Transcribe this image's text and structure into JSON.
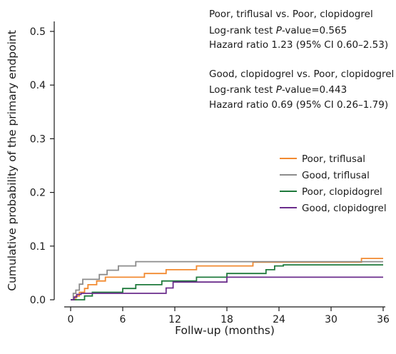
{
  "chart_data": {
    "type": "line",
    "subtype": "step",
    "xlabel": "Follw-up (months)",
    "ylabel": "Cumulative probability of the primary endpoint",
    "xlim": [
      0,
      36
    ],
    "ylim": [
      0,
      0.5
    ],
    "xticks": [
      0,
      6,
      12,
      18,
      24,
      30,
      36
    ],
    "yticks": [
      0.0,
      0.1,
      0.2,
      0.3,
      0.4,
      0.5
    ],
    "ytick_labels": [
      "0.0",
      "0.1",
      "0.2",
      "0.3",
      "0.4",
      "0.5"
    ],
    "grid": false,
    "legend_position": "right",
    "annotations": [
      {
        "prefix": "Poor, triflusal vs. Poor, clopidogrel",
        "suffix": ""
      },
      {
        "prefix": "Log-rank test ",
        "italic": "P",
        "suffix": "-value=0.565"
      },
      {
        "prefix": "Hazard ratio 1.23 (95% CI 0.60–2.53)",
        "suffix": ""
      },
      {
        "prefix": "Good, clopidogrel vs. Poor, clopidogrel",
        "suffix": ""
      },
      {
        "prefix": "Log-rank test ",
        "italic": "P",
        "suffix": "-value=0.443"
      },
      {
        "prefix": "Hazard ratio 0.69 (95% CI 0.26–1.79)",
        "suffix": ""
      }
    ],
    "series": [
      {
        "name": "Poor, triflusal",
        "color": "#f28a30",
        "x": [
          0,
          0.6,
          1.0,
          1.6,
          2.0,
          3.0,
          4.0,
          6.0,
          8.5,
          11.0,
          14.5,
          21.0,
          33.5,
          36.0
        ],
        "y": [
          0,
          0.007,
          0.014,
          0.021,
          0.028,
          0.035,
          0.042,
          0.042,
          0.049,
          0.056,
          0.063,
          0.07,
          0.077,
          0.077
        ]
      },
      {
        "name": "Good, triflusal",
        "color": "#8c8c8c",
        "x": [
          0,
          0.3,
          0.6,
          1.0,
          1.4,
          3.3,
          4.2,
          5.5,
          7.5,
          36.0
        ],
        "y": [
          0,
          0.012,
          0.018,
          0.029,
          0.038,
          0.047,
          0.055,
          0.063,
          0.071,
          0.071
        ]
      },
      {
        "name": "Poor, clopidogrel",
        "color": "#1f7a3c",
        "x": [
          0,
          1.6,
          2.5,
          4.0,
          6.0,
          7.5,
          9.0,
          10.5,
          12.5,
          14.5,
          16.0,
          18.0,
          22.5,
          23.5,
          24.5,
          36.0
        ],
        "y": [
          0,
          0.007,
          0.014,
          0.014,
          0.021,
          0.028,
          0.028,
          0.035,
          0.035,
          0.042,
          0.042,
          0.049,
          0.056,
          0.063,
          0.065,
          0.065
        ]
      },
      {
        "name": "Good, clopidogrel",
        "color": "#6b2d8c",
        "x": [
          0,
          0.4,
          0.7,
          1.2,
          11.0,
          11.8,
          13.5,
          18.0,
          36.0
        ],
        "y": [
          0,
          0.005,
          0.01,
          0.012,
          0.022,
          0.033,
          0.033,
          0.042,
          0.042
        ]
      }
    ]
  }
}
